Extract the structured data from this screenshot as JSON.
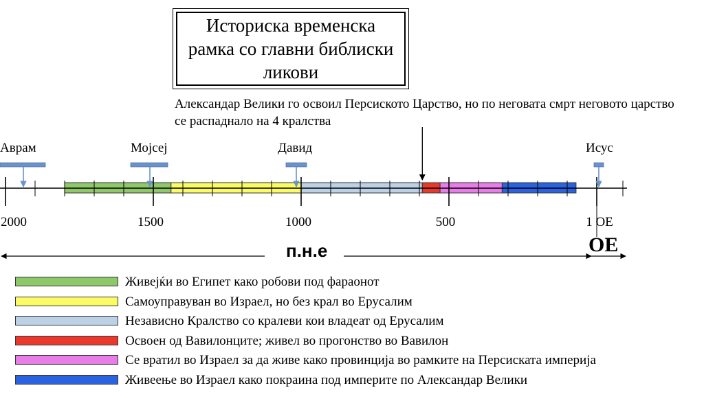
{
  "title": "Историска временска рамка со главни библиски ликови",
  "note": "Александар Велики го освоил Персиското Царство, но по неговата смрт неговото царство се распаднало на 4 кралства",
  "markers": [
    {
      "label": "Аврам",
      "year": -2000
    },
    {
      "label": "Мојсеј",
      "year": -1500
    },
    {
      "label": "Давид",
      "year": -1000
    },
    {
      "label": "Исус",
      "year": 1
    }
  ],
  "year_labels": [
    {
      "text": "2000",
      "year": -2000
    },
    {
      "text": "1500",
      "year": -1500
    },
    {
      "text": "1000",
      "year": -1000
    },
    {
      "text": "500",
      "year": -500
    },
    {
      "text": "1 ОЕ",
      "year": 1
    }
  ],
  "eras": {
    "bce": "п.н.е",
    "ce": "ОЕ"
  },
  "periods": [
    {
      "start": -1800,
      "end": -1440,
      "color": "#8fc86a",
      "label": "Живејќи во Египет како робови под фараонот"
    },
    {
      "start": -1440,
      "end": -1000,
      "color": "#fbfb66",
      "label": "Самоуправуван во Израел, но без крал во Ерусалим"
    },
    {
      "start": -1000,
      "end": -590,
      "color": "#bdd1e6",
      "label": "Независно Кралство со кралеви кои владеат од Ерусалим"
    },
    {
      "start": -590,
      "end": -530,
      "color": "#e8392c",
      "label": "Освоен од Вавилонците; живел во прогонство во Вавилон"
    },
    {
      "start": -530,
      "end": -320,
      "color": "#e87de8",
      "label": "Се вратил во Израел за да живе како провинција во рамките на Персиската империја"
    },
    {
      "start": -320,
      "end": -70,
      "color": "#2a62e0",
      "label": "Живеење во Израел како покраина под империте по Александар Велики"
    }
  ],
  "alexander_year": -590,
  "colors": {
    "marker": "#6b93c9",
    "axis": "#000000"
  }
}
